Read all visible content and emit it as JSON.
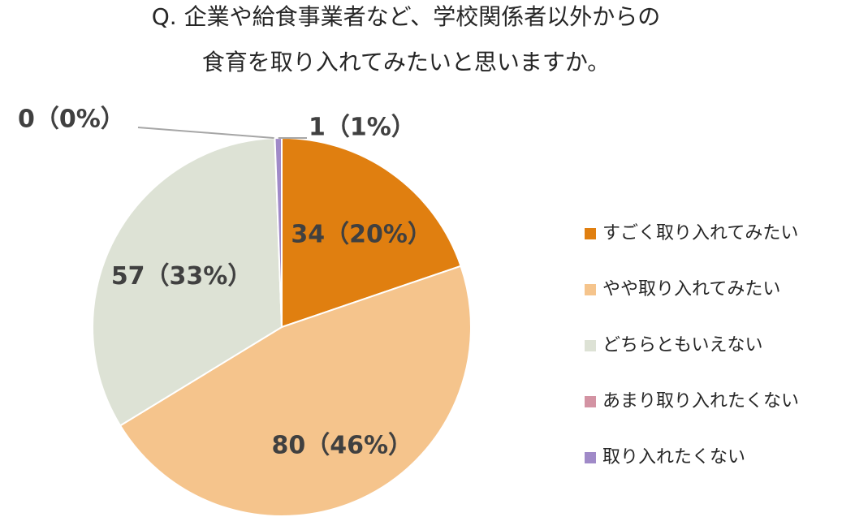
{
  "chart_data": {
    "type": "pie",
    "title": [
      "Q.  企業や給食事業者など、学校関係者以外からの",
      "食育を取り入れてみたいと思いますか。"
    ],
    "categories": [
      "すごく取り入れてみたい",
      "やや取り入れてみたい",
      "どちらともいえない",
      "あまり取り入れたくない",
      "取り入れたくない"
    ],
    "values": [
      34,
      80,
      57,
      0,
      1
    ],
    "value_labels": [
      "34（20%）",
      "80（46%）",
      "57（33%）",
      "0（0%）",
      "1（1%）"
    ],
    "colors": [
      "#E07F10",
      "#F5C48C",
      "#DDE2D5",
      "#D393A3",
      "#A08AC8"
    ],
    "legend": "right"
  }
}
